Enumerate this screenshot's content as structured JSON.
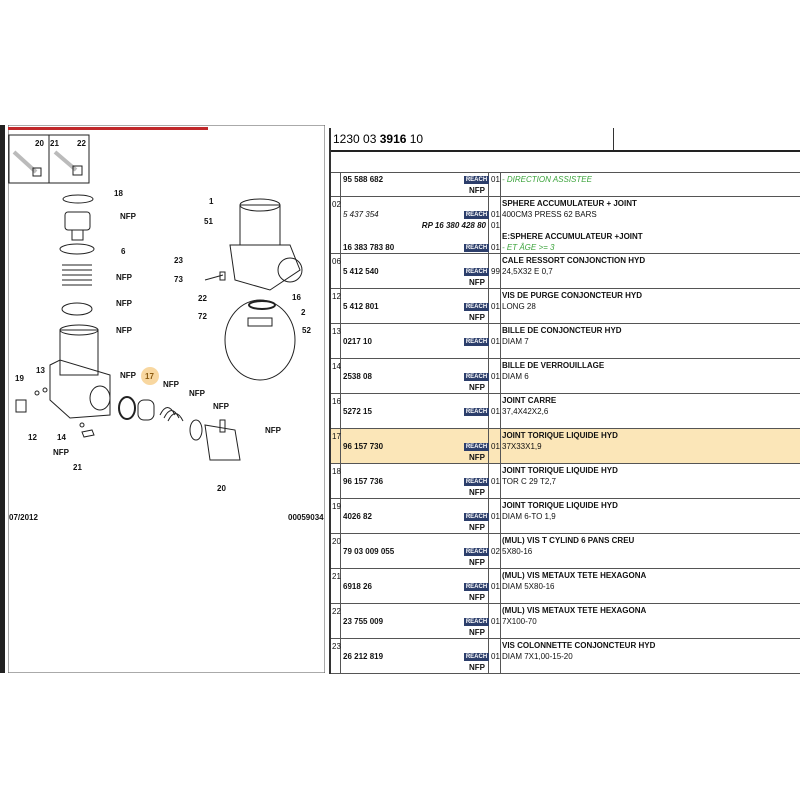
{
  "header": {
    "code_prefix": "1230 03 ",
    "code_bold": "3916",
    "code_suffix": " 10"
  },
  "diagram": {
    "labels": {
      "l20a": "20",
      "l21a": "21",
      "l22a": "22",
      "l18": "18",
      "nfp1": "NFP",
      "l6": "6",
      "nfp2": "NFP",
      "nfp3": "NFP",
      "nfp4": "NFP",
      "l13": "13",
      "l19": "19",
      "l12": "12",
      "l14": "14",
      "nfp5": "NFP",
      "l21": "21",
      "nfp6": "NFP",
      "l17": "17",
      "nfp7": "NFP",
      "nfp8": "NFP",
      "nfp9": "NFP",
      "nfp10": "NFP",
      "l20": "20",
      "l1": "1",
      "l51": "51",
      "l23": "23",
      "l73": "73",
      "l22": "22",
      "l72": "72",
      "l16": "16",
      "l2": "2",
      "l52": "52"
    },
    "date": "07/2012",
    "drawing_number": "00059034",
    "highlight_color": "#f8d7a0"
  },
  "reach_label": "REACH",
  "nfp_label": "NFP",
  "rows": [
    {
      "ref": "",
      "lines": [
        {
          "pn": "95 588 682",
          "reach": true,
          "qty": "01",
          "desc": "- DIRECTION ASSISTEE",
          "style": "g"
        },
        {
          "nfp": true
        }
      ]
    },
    {
      "ref": "02",
      "lines": [
        {
          "desc": "SPHERE ACCUMULATEUR + JOINT",
          "style": "b"
        },
        {
          "pn": "5 437 354",
          "italic": true,
          "reach": true,
          "qty": "01",
          "desc": "400CM3 PRESS 62 BARS"
        },
        {
          "rp": "RP 16 380 428 80",
          "qty": "01"
        },
        {
          "desc": "E:SPHERE ACCUMULATEUR +JOINT",
          "style": "b"
        },
        {
          "pn": "16 383 783 80",
          "reach": true,
          "qty": "01",
          "desc": "- ET ÂGE >= 3",
          "style": "g"
        }
      ]
    },
    {
      "ref": "06",
      "lines": [
        {
          "desc": "CALE RESSORT CONJONCTION HYD",
          "style": "b"
        },
        {
          "pn": "5 412 540",
          "reach": true,
          "qty": "99",
          "desc": "24,5X32 E 0,7"
        },
        {
          "nfp": true
        }
      ]
    },
    {
      "ref": "12",
      "lines": [
        {
          "desc": "VIS DE PURGE CONJONCTEUR HYD",
          "style": "b"
        },
        {
          "pn": "5 412 801",
          "reach": true,
          "qty": "01",
          "desc": "LONG 28"
        },
        {
          "nfp": true
        }
      ]
    },
    {
      "ref": "13",
      "lines": [
        {
          "desc": "BILLE DE CONJONCTEUR HYD",
          "style": "b"
        },
        {
          "pn": "0217 10",
          "reach": true,
          "qty": "01",
          "desc": "DIAM 7"
        },
        {}
      ]
    },
    {
      "ref": "14",
      "lines": [
        {
          "desc": "BILLE DE VERROUILLAGE",
          "style": "b"
        },
        {
          "pn": "2538 08",
          "reach": true,
          "qty": "01",
          "desc": "DIAM 6"
        },
        {
          "nfp": true
        }
      ]
    },
    {
      "ref": "16",
      "lines": [
        {
          "desc": "JOINT CARRE",
          "style": "b"
        },
        {
          "pn": "5272 15",
          "reach": true,
          "qty": "01",
          "desc": "37,4X42X2,6"
        },
        {}
      ]
    },
    {
      "ref": "17",
      "highlight": true,
      "lines": [
        {
          "desc": "JOINT TORIQUE LIQUIDE HYD",
          "style": "b"
        },
        {
          "pn": "96 157 730",
          "reach": true,
          "qty": "01",
          "desc": "37X33X1,9"
        },
        {
          "nfp": true
        }
      ]
    },
    {
      "ref": "18",
      "lines": [
        {
          "desc": "JOINT TORIQUE LIQUIDE HYD",
          "style": "b"
        },
        {
          "pn": "96 157 736",
          "reach": true,
          "qty": "01",
          "desc": "TOR C 29 T2,7"
        },
        {
          "nfp": true
        }
      ]
    },
    {
      "ref": "19",
      "lines": [
        {
          "desc": "JOINT TORIQUE LIQUIDE HYD",
          "style": "b"
        },
        {
          "pn": "4026 82",
          "reach": true,
          "qty": "01",
          "desc": "DIAM 6-TO 1,9"
        },
        {
          "nfp": true
        }
      ]
    },
    {
      "ref": "20",
      "lines": [
        {
          "desc": "(MUL) VIS T CYLIND 6 PANS CREU",
          "style": "b"
        },
        {
          "pn": "79 03 009 055",
          "reach": true,
          "qty": "02",
          "desc": "5X80-16"
        },
        {
          "nfp": true
        }
      ]
    },
    {
      "ref": "21",
      "lines": [
        {
          "desc": "(MUL) VIS METAUX TETE HEXAGONA",
          "style": "b"
        },
        {
          "pn": "6918 26",
          "reach": true,
          "qty": "01",
          "desc": "DIAM 5X80-16"
        },
        {
          "nfp": true
        }
      ]
    },
    {
      "ref": "22",
      "lines": [
        {
          "desc": "(MUL) VIS METAUX TETE HEXAGONA",
          "style": "b"
        },
        {
          "pn": "23 755 009",
          "reach": true,
          "qty": "01",
          "desc": "7X100-70"
        },
        {
          "nfp": true
        }
      ]
    },
    {
      "ref": "23",
      "lines": [
        {
          "desc": "VIS COLONNETTE CONJONCTEUR HYD",
          "style": "b"
        },
        {
          "pn": "26 212 819",
          "reach": true,
          "qty": "01",
          "desc": "DIAM 7X1,00-15-20"
        },
        {
          "nfp": true
        }
      ]
    }
  ]
}
